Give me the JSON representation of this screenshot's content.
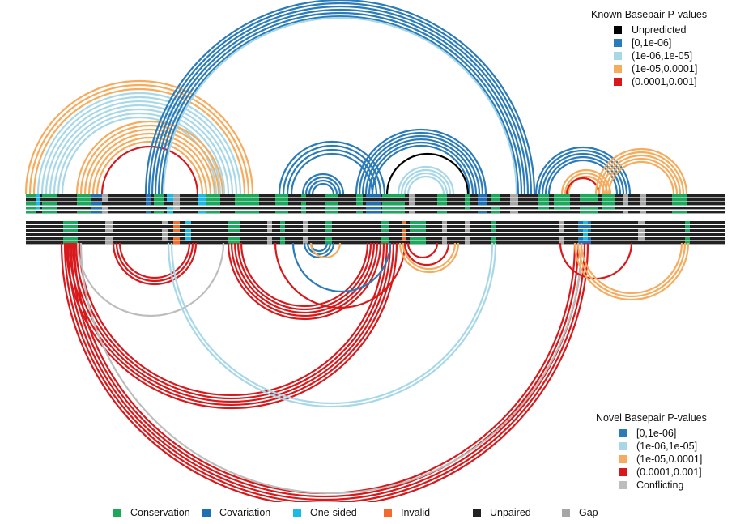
{
  "legend_known": {
    "title": "Known Basepair P-values",
    "items": [
      {
        "label": "Unpredicted",
        "color": "#000000"
      },
      {
        "label": "[0,1e-06]",
        "color": "#2b7bb9"
      },
      {
        "label": "(1e-06,1e-05]",
        "color": "#a8d8e8"
      },
      {
        "label": "(1e-05,0.0001]",
        "color": "#f5ac5e"
      },
      {
        "label": "(0.0001,0.001]",
        "color": "#d7191c"
      }
    ]
  },
  "legend_novel": {
    "title": "Novel Basepair P-values",
    "items": [
      {
        "label": "[0,1e-06]",
        "color": "#2b7bb9"
      },
      {
        "label": "(1e-06,1e-05]",
        "color": "#a8d8e8"
      },
      {
        "label": "(1e-05,0.0001]",
        "color": "#f5ac5e"
      },
      {
        "label": "(0.0001,0.001]",
        "color": "#d7191c"
      },
      {
        "label": "Conflicting",
        "color": "#bdbdbd"
      }
    ]
  },
  "legend_alignment": {
    "items": [
      {
        "label": "Conservation",
        "color": "#1aa85a"
      },
      {
        "label": "Covariation",
        "color": "#1f6fb4"
      },
      {
        "label": "One-sided",
        "color": "#1ab9e6"
      },
      {
        "label": "Invalid",
        "color": "#f26a2e"
      },
      {
        "label": "Unpaired",
        "color": "#222222"
      },
      {
        "label": "Gap",
        "color": "#a6a6a6"
      }
    ]
  }
}
